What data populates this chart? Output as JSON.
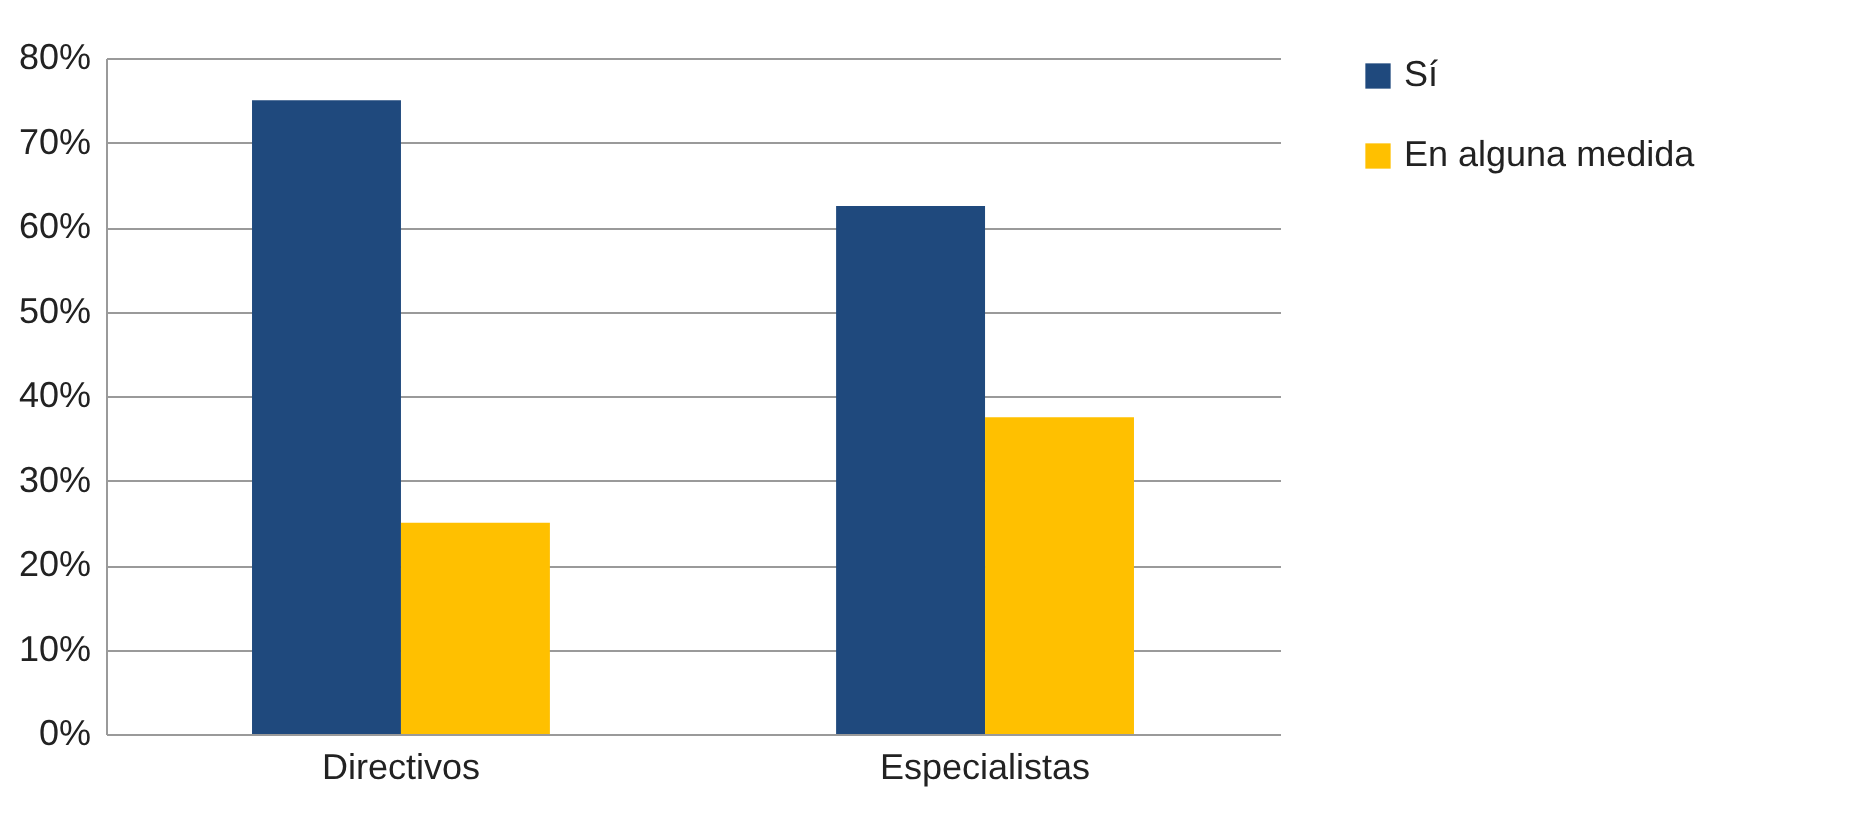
{
  "chart_data": {
    "type": "bar",
    "categories": [
      "Directivos",
      "Especialistas"
    ],
    "series": [
      {
        "name": "Sí",
        "color": "#1f497d",
        "values": [
          75,
          62.5
        ]
      },
      {
        "name": "En alguna medida",
        "color": "#ffc000",
        "values": [
          25,
          37.5
        ]
      }
    ],
    "ylim": [
      0,
      80
    ],
    "yticks": [
      {
        "value": 0,
        "label": "0%"
      },
      {
        "value": 10,
        "label": "10%"
      },
      {
        "value": 20,
        "label": "20%"
      },
      {
        "value": 30,
        "label": "30%"
      },
      {
        "value": 40,
        "label": "40%"
      },
      {
        "value": 50,
        "label": "50%"
      },
      {
        "value": 60,
        "label": "60%"
      },
      {
        "value": 70,
        "label": "70%"
      },
      {
        "value": 80,
        "label": "80%"
      }
    ],
    "grid": "y",
    "legend": "right"
  }
}
